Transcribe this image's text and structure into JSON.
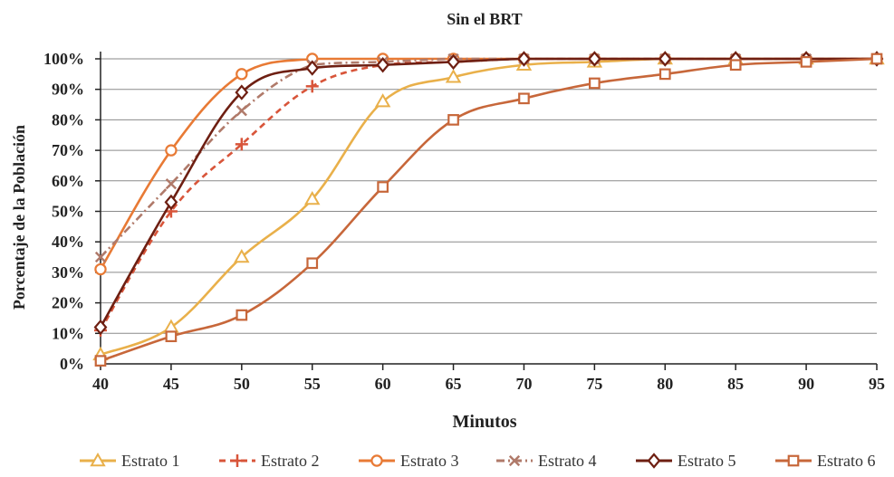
{
  "chart_data": {
    "type": "line",
    "title": "Sin el BRT",
    "xlabel": "Minutos",
    "ylabel": "Porcentaje de la Población",
    "x": [
      40,
      45,
      50,
      55,
      60,
      65,
      70,
      75,
      80,
      85,
      90,
      95
    ],
    "xlim": [
      40,
      95
    ],
    "ylim": [
      0,
      100
    ],
    "yticks": [
      "0%",
      "10%",
      "20%",
      "30%",
      "40%",
      "50%",
      "60%",
      "70%",
      "80%",
      "90%",
      "100%"
    ],
    "xticks": [
      "40",
      "45",
      "50",
      "55",
      "60",
      "65",
      "70",
      "75",
      "80",
      "85",
      "90",
      "95"
    ],
    "grid": true,
    "legend_position": "bottom",
    "series": [
      {
        "name": "Estrato 1",
        "color": "#e9b04a",
        "marker": "triangle",
        "dash": "solid",
        "x": [
          40,
          45,
          50,
          55,
          60,
          65,
          70,
          75,
          80,
          85,
          90,
          95
        ],
        "values": [
          3,
          12,
          35,
          54,
          86,
          94,
          98,
          99,
          100,
          100,
          100,
          100
        ]
      },
      {
        "name": "Estrato 2",
        "color": "#d8553a",
        "marker": "plus",
        "dash": "dashed",
        "x": [
          40,
          45,
          50,
          55,
          60,
          65,
          70,
          75,
          80,
          85,
          90,
          95
        ],
        "values": [
          11,
          50,
          72,
          91,
          98,
          99,
          100,
          100,
          100,
          100,
          100,
          100
        ]
      },
      {
        "name": "Estrato 3",
        "color": "#e87a35",
        "marker": "circle",
        "dash": "solid",
        "x": [
          40,
          45,
          50,
          55,
          60,
          65,
          70,
          75,
          80,
          85,
          90,
          95
        ],
        "values": [
          31,
          70,
          95,
          100,
          100,
          100,
          100,
          100,
          100,
          100,
          100,
          100
        ]
      },
      {
        "name": "Estrato 4",
        "color": "#b07a6a",
        "marker": "x",
        "dash": "dashdot",
        "x": [
          40,
          45,
          50,
          55,
          60,
          65,
          70,
          75,
          80,
          85,
          90,
          95
        ],
        "values": [
          35,
          59,
          83,
          98,
          99,
          100,
          100,
          100,
          100,
          100,
          100,
          100
        ]
      },
      {
        "name": "Estrato 5",
        "color": "#6e1f12",
        "marker": "diamond",
        "dash": "solid",
        "x": [
          40,
          45,
          50,
          55,
          60,
          65,
          70,
          75,
          80,
          85,
          90,
          95
        ],
        "values": [
          12,
          53,
          89,
          97,
          98,
          99,
          100,
          100,
          100,
          100,
          100,
          100
        ]
      },
      {
        "name": "Estrato 6",
        "color": "#c7673a",
        "marker": "square",
        "dash": "solid",
        "x": [
          40,
          45,
          50,
          55,
          60,
          65,
          70,
          75,
          80,
          85,
          90,
          95
        ],
        "values": [
          1,
          9,
          16,
          33,
          58,
          80,
          87,
          92,
          95,
          98,
          99,
          100
        ]
      }
    ]
  }
}
